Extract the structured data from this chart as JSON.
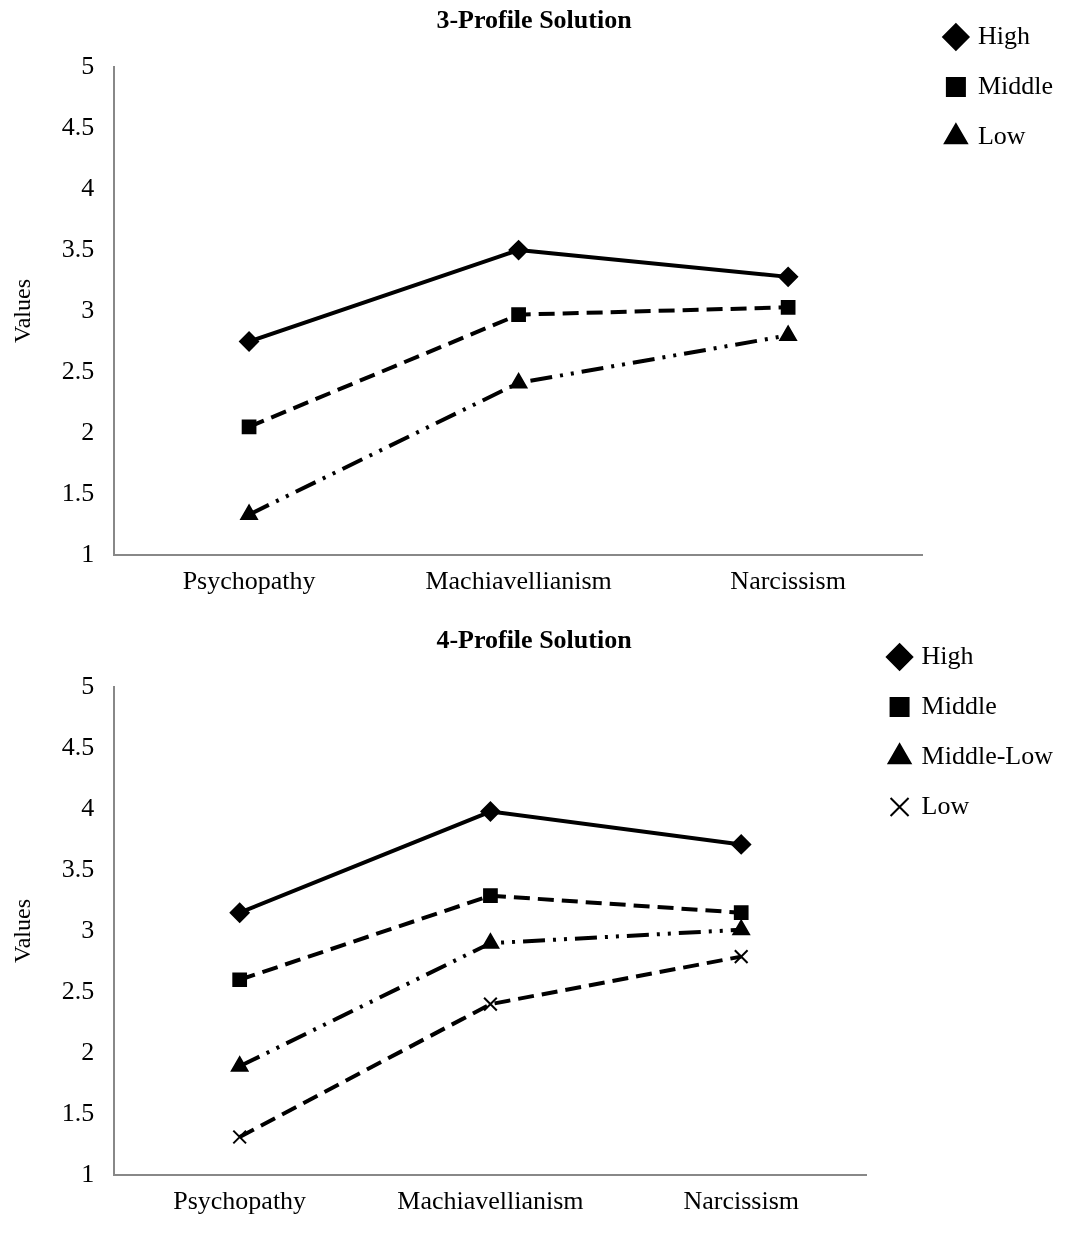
{
  "chart_data": [
    {
      "type": "line",
      "title": "3-Profile Solution",
      "ylabel": "Values",
      "categories": [
        "Psychopathy",
        "Machiavellianism",
        "Narcissism"
      ],
      "ylim": [
        1,
        5
      ],
      "yticks": [
        1,
        1.5,
        2,
        2.5,
        3,
        3.5,
        4,
        4.5,
        5
      ],
      "grid": false,
      "legend": "top right",
      "series": [
        {
          "name": "High",
          "color": "#000000",
          "marker": "diamond",
          "line_style": "solid",
          "values": [
            2.75,
            3.5,
            3.28
          ]
        },
        {
          "name": "Middle",
          "color": "#000000",
          "marker": "square",
          "line_style": "dashed",
          "values": [
            2.05,
            2.97,
            3.03
          ]
        },
        {
          "name": "Low",
          "color": "#000000",
          "marker": "triangle",
          "line_style": "dotted",
          "values": [
            1.33,
            2.41,
            2.8
          ]
        }
      ]
    },
    {
      "type": "line",
      "title": "4-Profile Solution",
      "ylabel": "Values",
      "categories": [
        "Psychopathy",
        "Machiavellianism",
        "Narcissism"
      ],
      "ylim": [
        1,
        5
      ],
      "yticks": [
        1,
        1.5,
        2,
        2.5,
        3,
        3.5,
        4,
        4.5,
        5
      ],
      "grid": false,
      "legend": "top right",
      "series": [
        {
          "name": "High",
          "color": "#000000",
          "marker": "diamond",
          "line_style": "solid",
          "values": [
            3.15,
            3.98,
            3.71
          ]
        },
        {
          "name": "Middle",
          "color": "#000000",
          "marker": "square",
          "line_style": "dashed",
          "values": [
            2.6,
            3.29,
            3.15
          ]
        },
        {
          "name": "Middle-Low",
          "color": "#000000",
          "marker": "triangle",
          "line_style": "dotted",
          "values": [
            1.89,
            2.9,
            3.01
          ]
        },
        {
          "name": "Low",
          "color": "#000000",
          "marker": "cross",
          "line_style": "dashed",
          "values": [
            1.31,
            2.4,
            2.79
          ]
        }
      ]
    }
  ]
}
